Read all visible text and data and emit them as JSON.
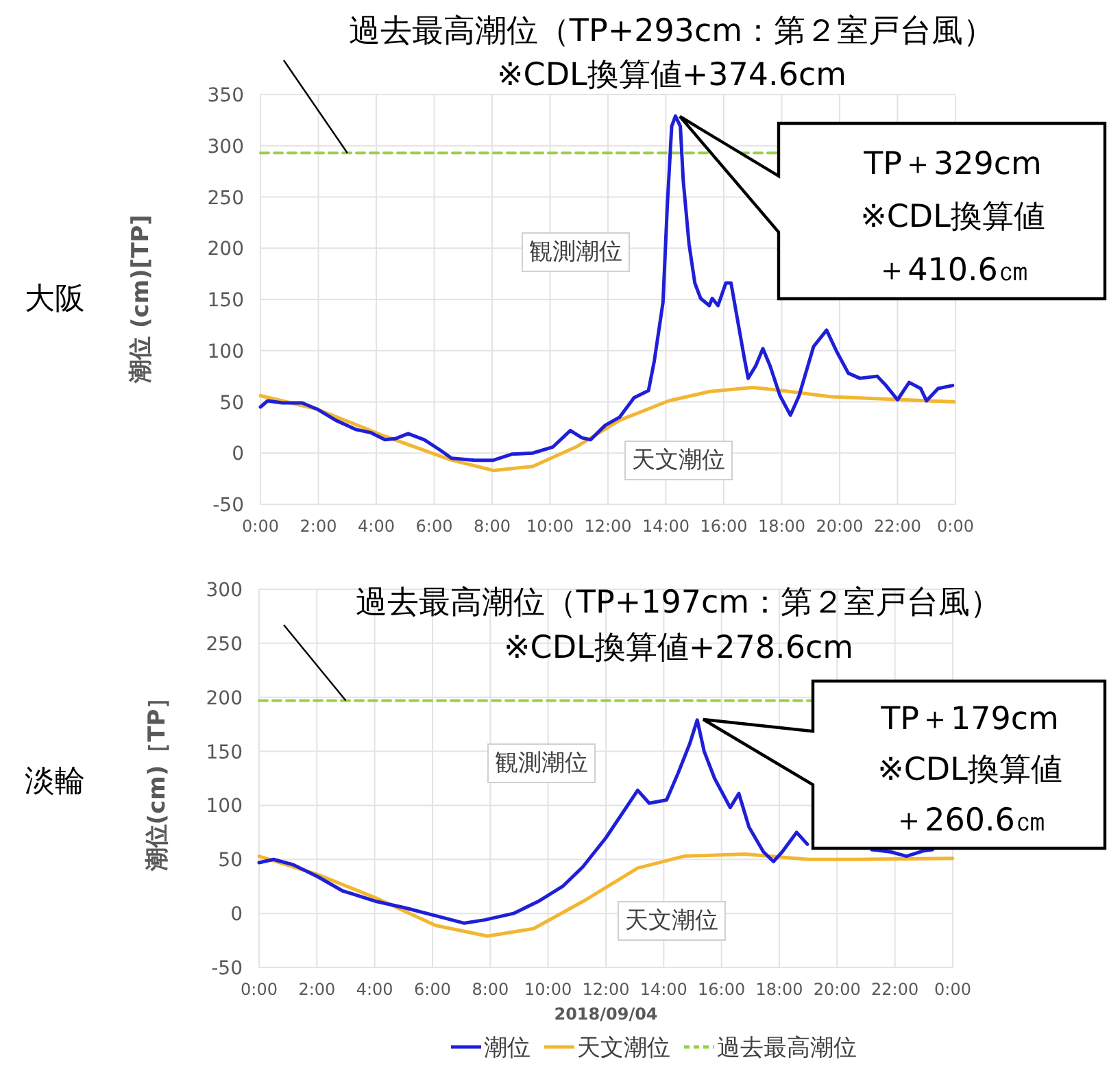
{
  "chart_data": [
    {
      "type": "line",
      "title": "大阪",
      "ylabel": "潮位 (cm)[TP]",
      "xlim": [
        0,
        24
      ],
      "xticks": [
        {
          "value": 0,
          "label": "0:00"
        },
        {
          "value": 2,
          "label": "2:00"
        },
        {
          "value": 4,
          "label": "4:00"
        },
        {
          "value": 6,
          "label": "6:00"
        },
        {
          "value": 8,
          "label": "8:00"
        },
        {
          "value": 10,
          "label": "10:00"
        },
        {
          "value": 12,
          "label": "12:00"
        },
        {
          "value": 14,
          "label": "14:00"
        },
        {
          "value": 16,
          "label": "16:00"
        },
        {
          "value": 18,
          "label": "18:00"
        },
        {
          "value": 20,
          "label": "20:00"
        },
        {
          "value": 22,
          "label": "22:00"
        },
        {
          "value": 24,
          "label": "0:00"
        }
      ],
      "ylim": [
        -50,
        350
      ],
      "yticks": [
        -50,
        0,
        50,
        100,
        150,
        200,
        250,
        300,
        350
      ],
      "grid": true,
      "legend": false,
      "series": [
        {
          "color": "#98cf4a",
          "line_style": "dashed",
          "x": [
            0,
            17.8
          ],
          "values": [
            293,
            293
          ]
        },
        {
          "color": "#f2b630",
          "line_style": "solid",
          "x": [
            0,
            1.95,
            4.15,
            6.5,
            8.04,
            9.4,
            10.9,
            12.4,
            14.1,
            15.5,
            17.0,
            18.0,
            19.7,
            21.4,
            23.95
          ],
          "values": [
            56,
            43,
            18,
            -6,
            -17,
            -13,
            6,
            32,
            51,
            60,
            64,
            61,
            55,
            53,
            50
          ]
        },
        {
          "color": "#1f1fd8",
          "line_style": "solid",
          "x": [
            0,
            0.25,
            0.76,
            1.44,
            1.95,
            2.6,
            3.3,
            3.8,
            4.3,
            4.65,
            5.1,
            5.66,
            6.2,
            6.6,
            7.4,
            8.04,
            8.7,
            9.4,
            10.1,
            10.7,
            11.1,
            11.4,
            11.9,
            12.4,
            12.9,
            13.4,
            13.6,
            13.9,
            14.05,
            14.2,
            14.33,
            14.5,
            14.6,
            14.8,
            15.0,
            15.2,
            15.5,
            15.6,
            15.8,
            16.07,
            16.25,
            16.4,
            16.7,
            16.84,
            17.1,
            17.35,
            17.6,
            17.94,
            18.3,
            18.6,
            19.1,
            19.55,
            19.9,
            20.3,
            20.7,
            21.3,
            21.6,
            22.0,
            22.4,
            22.8,
            23.0,
            23.4,
            23.9
          ],
          "values": [
            45,
            51,
            49,
            49,
            43,
            32,
            23,
            20,
            13,
            14,
            19,
            13,
            3,
            -5,
            -7,
            -7,
            -1,
            0,
            6,
            22,
            15,
            13,
            27,
            35,
            54,
            61,
            90,
            147,
            242,
            319,
            329,
            319,
            266,
            204,
            166,
            151,
            144,
            151,
            144,
            166,
            166,
            142,
            94,
            73,
            85,
            102,
            85,
            56,
            37,
            56,
            104,
            120,
            99,
            78,
            73,
            75,
            66,
            52,
            69,
            63,
            51,
            63,
            66
          ]
        }
      ],
      "annotations": [
        {
          "text": "過去最高潮位（TP+293cm：第２室戸台風）\n※CDL換算値+374.6cm",
          "x": 3,
          "y": 293
        },
        "TP＋329cm",
        "※CDL換算値",
        "＋410.6㎝",
        "観測潮位",
        "天文潮位"
      ]
    },
    {
      "type": "line",
      "title": "淡輪",
      "ylabel": "潮位(cm)［TP］",
      "xlabel": "2018/09/04",
      "xlim": [
        0,
        24
      ],
      "xticks": [
        {
          "value": 0,
          "label": "0:00"
        },
        {
          "value": 2,
          "label": "2:00"
        },
        {
          "value": 4,
          "label": "4:00"
        },
        {
          "value": 6,
          "label": "6:00"
        },
        {
          "value": 8,
          "label": "8:00"
        },
        {
          "value": 10,
          "label": "10:00"
        },
        {
          "value": 12,
          "label": "12:00"
        },
        {
          "value": 14,
          "label": "14:00"
        },
        {
          "value": 16,
          "label": "16:00"
        },
        {
          "value": 18,
          "label": "18:00"
        },
        {
          "value": 20,
          "label": "20:00"
        },
        {
          "value": 22,
          "label": "22:00"
        },
        {
          "value": 24,
          "label": "0:00"
        }
      ],
      "ylim": [
        -50,
        300
      ],
      "yticks": [
        -50,
        0,
        50,
        100,
        150,
        200,
        250,
        300
      ],
      "grid": true,
      "legend": "bottom",
      "series": [
        {
          "name": "過去最高潮位",
          "color": "#98cf4a",
          "line_style": "dashed",
          "x": [
            0,
            19.1
          ],
          "values": [
            197,
            197
          ]
        },
        {
          "name": "天文潮位",
          "color": "#f2b630",
          "line_style": "solid",
          "x": [
            0,
            2.03,
            4.07,
            6.1,
            7.9,
            9.5,
            11.2,
            13.1,
            14.7,
            16.8,
            19.0,
            20.7,
            24
          ],
          "values": [
            53,
            36,
            14,
            -11,
            -21,
            -14,
            11,
            42,
            53,
            55,
            50,
            50,
            51
          ]
        },
        {
          "name": "潮位",
          "color": "#1f1fd8",
          "line_style": "solid",
          "x": [
            0,
            0.5,
            1.19,
            2.03,
            2.88,
            4.07,
            5.08,
            6.1,
            7.1,
            7.8,
            8.8,
            9.65,
            10.5,
            11.2,
            12.0,
            12.7,
            13.1,
            13.5,
            14.1,
            14.5,
            14.9,
            15.16,
            15.4,
            15.76,
            16.3,
            16.6,
            16.95,
            17.45,
            17.8,
            18.1,
            18.6,
            18.97,
            20.2,
            21.2,
            21.85,
            22.4,
            23.0,
            23.3
          ],
          "values": [
            47,
            50,
            45,
            34,
            21,
            11,
            5,
            -2,
            -9,
            -6,
            0,
            11,
            25,
            43,
            70,
            98,
            114,
            102,
            105,
            130,
            157,
            179,
            150,
            125,
            98,
            111,
            80,
            57,
            48,
            57,
            75,
            64,
            null,
            59,
            57,
            53,
            58,
            59
          ]
        }
      ],
      "annotations": [
        {
          "text": "過去最高潮位（TP+197cm：第２室戸台風）\n※CDL換算値+278.6cm",
          "x": 3,
          "y": 197
        },
        "TP＋179cm",
        "※CDL換算値",
        "＋260.6㎝",
        "観測潮位",
        "天文潮位"
      ]
    }
  ]
}
